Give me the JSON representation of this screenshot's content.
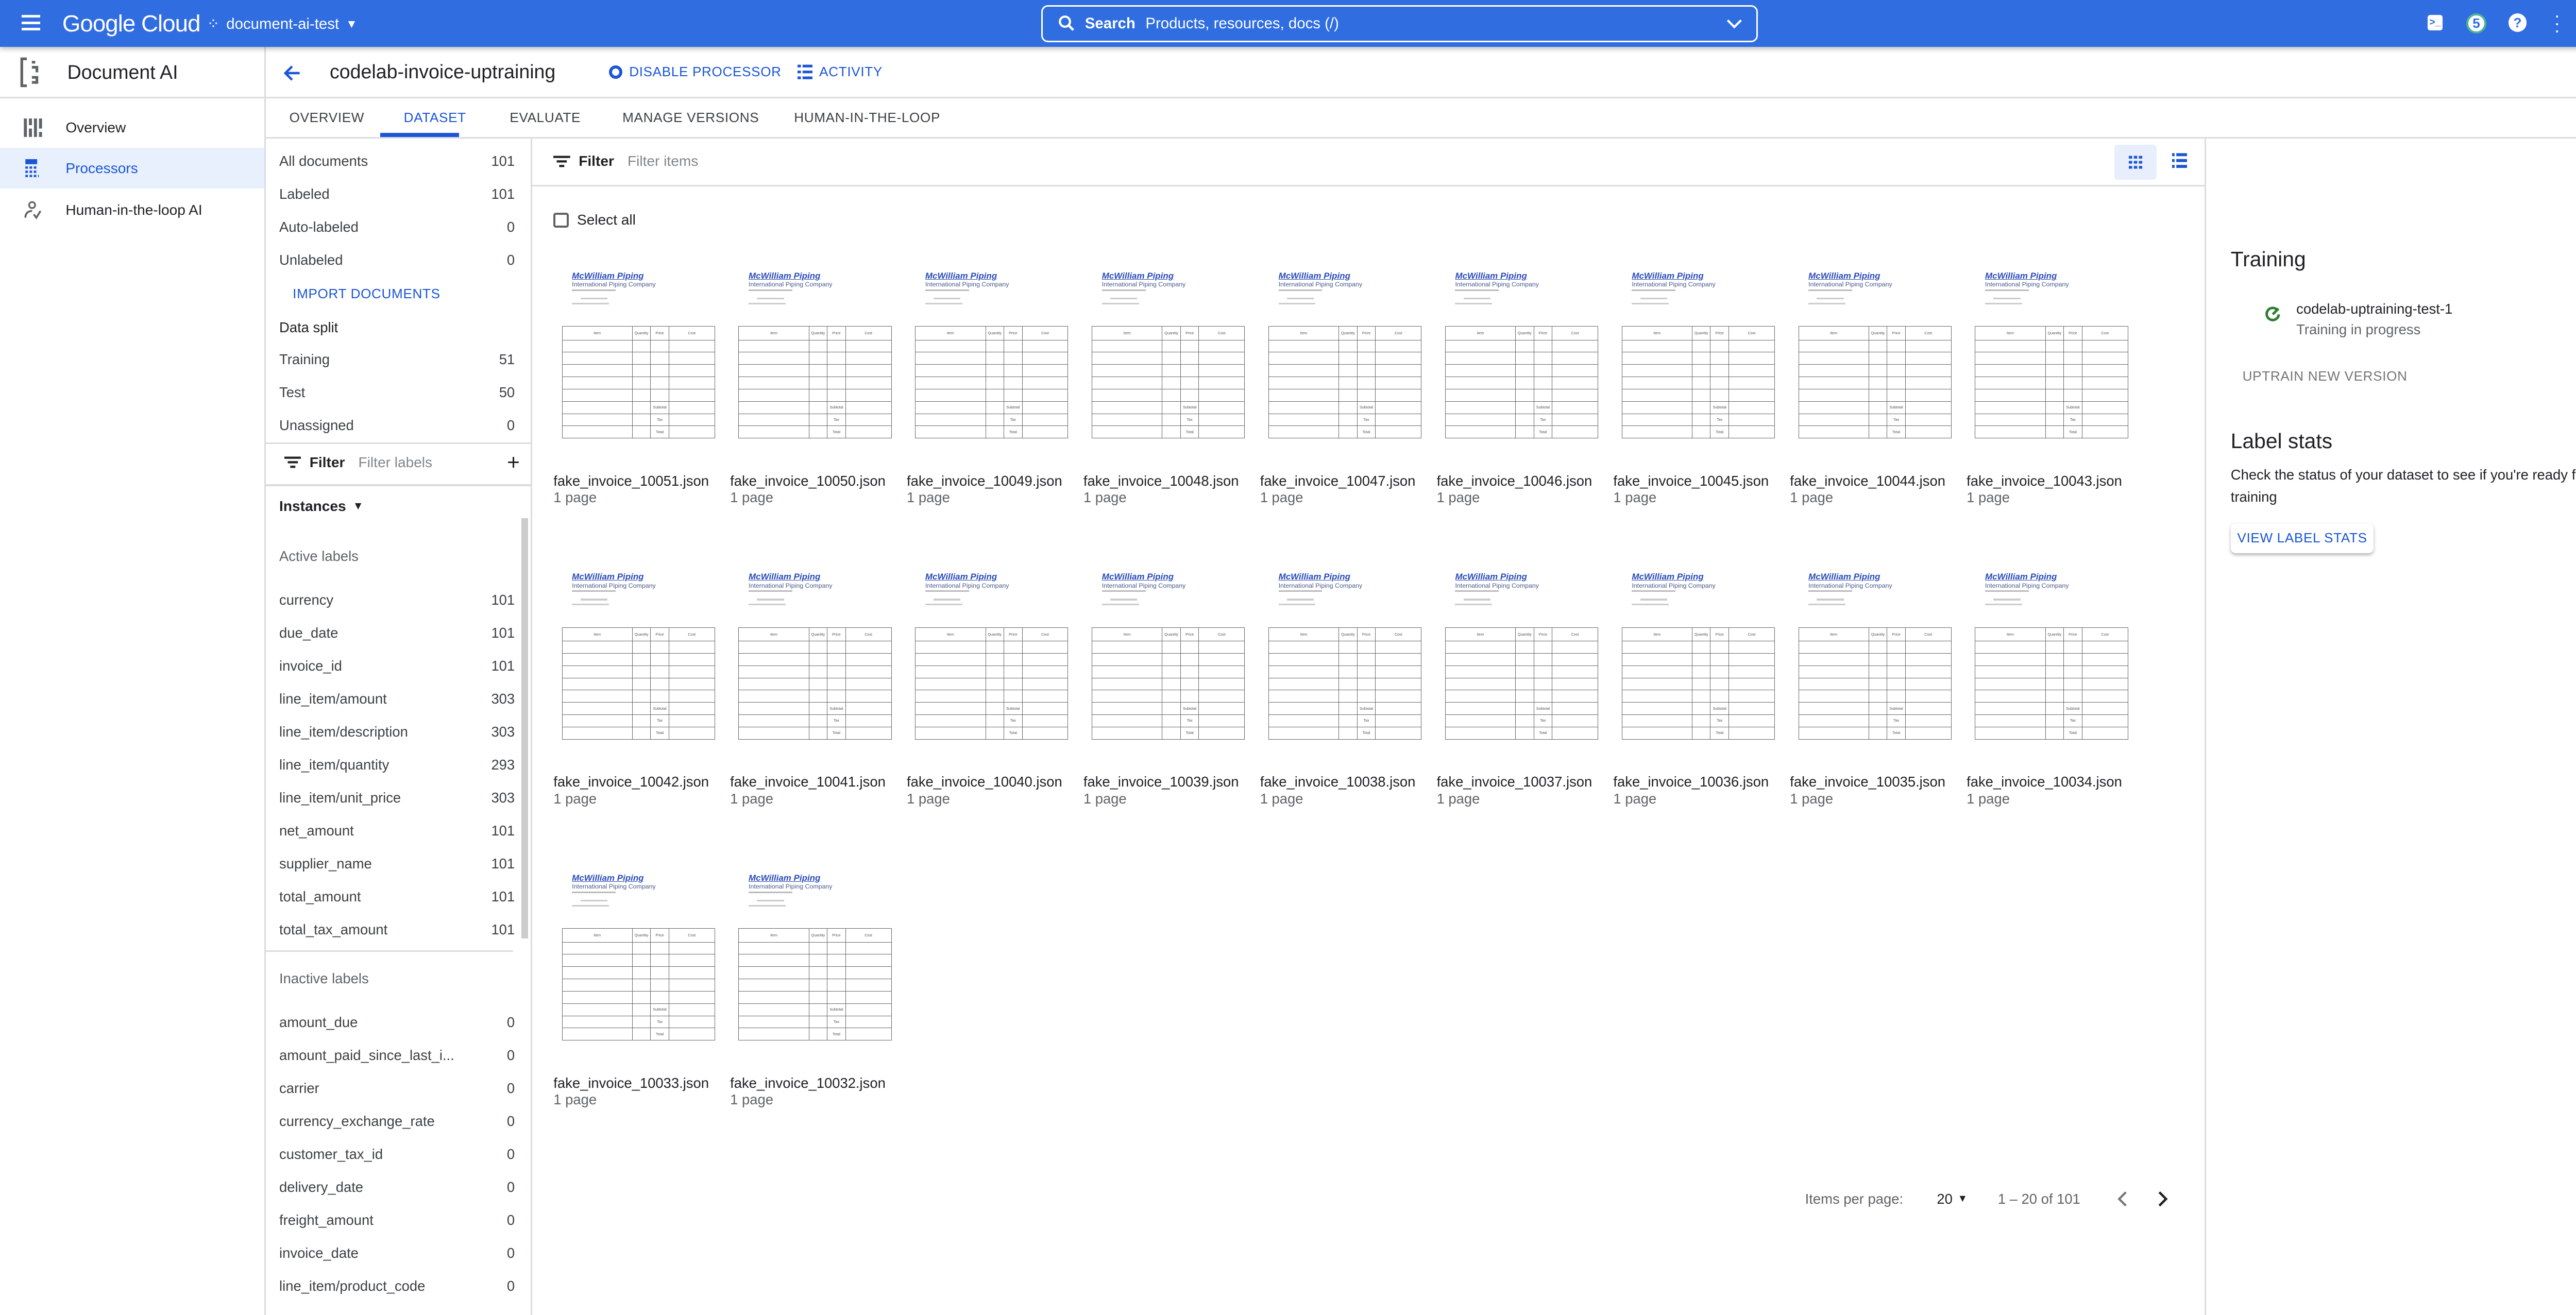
{
  "topbar": {
    "brand": "Google Cloud",
    "project": "document-ai-test",
    "search_label": "Search",
    "search_placeholder": "Products, resources, docs (/)",
    "notification_count": "5",
    "accent": "#2f6de1"
  },
  "sidebar": {
    "product": "Document AI",
    "items": [
      {
        "label": "Overview",
        "icon": "dashboard-icon"
      },
      {
        "label": "Processors",
        "icon": "processor-icon",
        "selected": true
      },
      {
        "label": "Human-in-the-loop AI",
        "icon": "human-review-icon"
      }
    ]
  },
  "header": {
    "title": "codelab-invoice-uptraining",
    "disable_label": "DISABLE PROCESSOR",
    "activity_label": "ACTIVITY"
  },
  "tabs": [
    {
      "label": "OVERVIEW"
    },
    {
      "label": "DATASET",
      "selected": true
    },
    {
      "label": "EVALUATE"
    },
    {
      "label": "MANAGE VERSIONS"
    },
    {
      "label": "HUMAN-IN-THE-LOOP"
    }
  ],
  "filters": {
    "counts": [
      {
        "label": "All documents",
        "value": "101"
      },
      {
        "label": "Labeled",
        "value": "101"
      },
      {
        "label": "Auto-labeled",
        "value": "0"
      },
      {
        "label": "Unlabeled",
        "value": "0"
      }
    ],
    "import_label": "IMPORT DOCUMENTS",
    "split_title": "Data split",
    "split": [
      {
        "label": "Training",
        "value": "51"
      },
      {
        "label": "Test",
        "value": "50"
      },
      {
        "label": "Unassigned",
        "value": "0"
      }
    ],
    "filter_label": "Filter",
    "filter_placeholder": "Filter labels",
    "instances_label": "Instances",
    "active_title": "Active labels",
    "active": [
      {
        "label": "currency",
        "value": "101"
      },
      {
        "label": "due_date",
        "value": "101"
      },
      {
        "label": "invoice_id",
        "value": "101"
      },
      {
        "label": "line_item/amount",
        "value": "303"
      },
      {
        "label": "line_item/description",
        "value": "303"
      },
      {
        "label": "line_item/quantity",
        "value": "293"
      },
      {
        "label": "line_item/unit_price",
        "value": "303"
      },
      {
        "label": "net_amount",
        "value": "101"
      },
      {
        "label": "supplier_name",
        "value": "101"
      },
      {
        "label": "total_amount",
        "value": "101"
      },
      {
        "label": "total_tax_amount",
        "value": "101"
      }
    ],
    "inactive_title": "Inactive labels",
    "inactive": [
      {
        "label": "amount_due",
        "value": "0"
      },
      {
        "label": "amount_paid_since_last_i...",
        "value": "0"
      },
      {
        "label": "carrier",
        "value": "0"
      },
      {
        "label": "currency_exchange_rate",
        "value": "0"
      },
      {
        "label": "customer_tax_id",
        "value": "0"
      },
      {
        "label": "delivery_date",
        "value": "0"
      },
      {
        "label": "freight_amount",
        "value": "0"
      },
      {
        "label": "invoice_date",
        "value": "0"
      },
      {
        "label": "line_item/product_code",
        "value": "0"
      }
    ]
  },
  "grid": {
    "filter_label": "Filter",
    "filter_placeholder": "Filter items",
    "select_all": "Select all",
    "view_mode": "grid",
    "thumbnail": {
      "company": "McWilliam Piping",
      "tagline": "International Piping Company",
      "columns": [
        "Item",
        "Quantity",
        "Price",
        "Cost"
      ],
      "totals": [
        "Subtotal",
        "Tax",
        "Total"
      ]
    },
    "files": [
      {
        "name": "fake_invoice_10051.json",
        "pages": "1 page"
      },
      {
        "name": "fake_invoice_10050.json",
        "pages": "1 page"
      },
      {
        "name": "fake_invoice_10049.json",
        "pages": "1 page"
      },
      {
        "name": "fake_invoice_10048.json",
        "pages": "1 page"
      },
      {
        "name": "fake_invoice_10047.json",
        "pages": "1 page"
      },
      {
        "name": "fake_invoice_10046.json",
        "pages": "1 page"
      },
      {
        "name": "fake_invoice_10045.json",
        "pages": "1 page"
      },
      {
        "name": "fake_invoice_10044.json",
        "pages": "1 page"
      },
      {
        "name": "fake_invoice_10043.json",
        "pages": "1 page"
      },
      {
        "name": "fake_invoice_10042.json",
        "pages": "1 page"
      },
      {
        "name": "fake_invoice_10041.json",
        "pages": "1 page"
      },
      {
        "name": "fake_invoice_10040.json",
        "pages": "1 page"
      },
      {
        "name": "fake_invoice_10039.json",
        "pages": "1 page"
      },
      {
        "name": "fake_invoice_10038.json",
        "pages": "1 page"
      },
      {
        "name": "fake_invoice_10037.json",
        "pages": "1 page"
      },
      {
        "name": "fake_invoice_10036.json",
        "pages": "1 page"
      },
      {
        "name": "fake_invoice_10035.json",
        "pages": "1 page"
      },
      {
        "name": "fake_invoice_10034.json",
        "pages": "1 page"
      },
      {
        "name": "fake_invoice_10033.json",
        "pages": "1 page"
      },
      {
        "name": "fake_invoice_10032.json",
        "pages": "1 page"
      }
    ],
    "pagination": {
      "items_per_page_label": "Items per page:",
      "items_per_page": "20",
      "range": "1 – 20 of 101"
    }
  },
  "right_panel": {
    "training_title": "Training",
    "job_name": "codelab-uptraining-test-1",
    "job_status": "Training in progress",
    "status_color": "#2e7d32",
    "uptrain_label": "UPTRAIN NEW VERSION",
    "stats_title": "Label stats",
    "stats_text": "Check the status of your dataset to see if you're ready for training",
    "stats_button": "VIEW LABEL STATS"
  }
}
